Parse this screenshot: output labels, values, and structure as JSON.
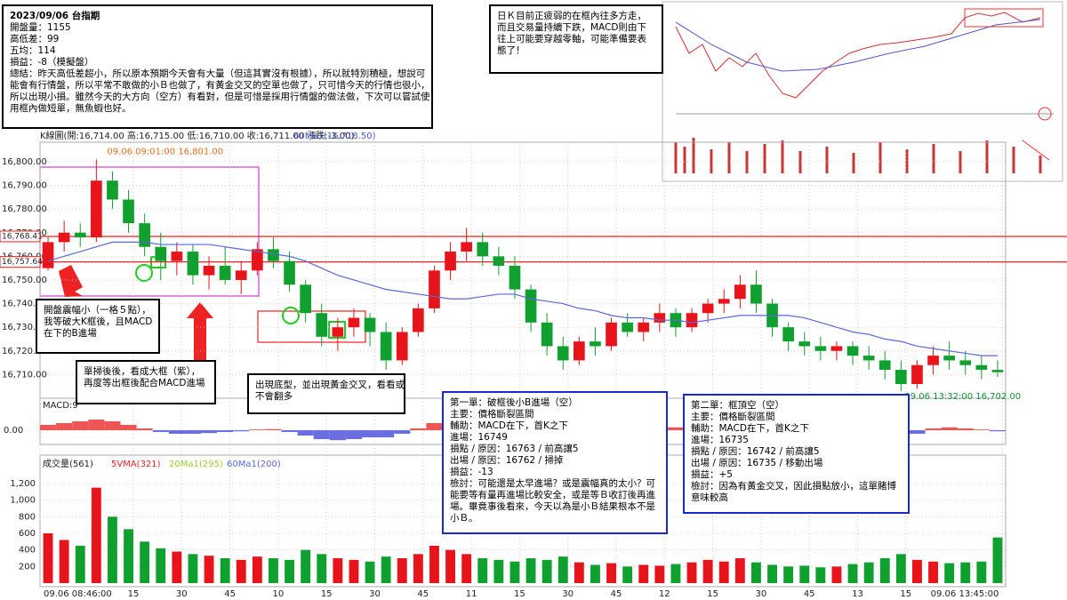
{
  "chart_data": {
    "type": "candlestick",
    "header": "K線圖(開:16,714.00 高:16,715.00 低:16,710.00 收:16,711.00 漲跌:-3.00)",
    "ma_header": "60Ma1(16,718.50)",
    "high_label": "09.06 09:01:00  16,801.00",
    "low_label": "09.06 13:32:00  16,702.00",
    "xlim": [
      0,
      300
    ],
    "xticks": [
      {
        "value": 0,
        "label": "09.06 08:46:00"
      },
      {
        "value": 29,
        "label": "15"
      },
      {
        "value": 44,
        "label": "30"
      },
      {
        "value": 59,
        "label": "45"
      },
      {
        "value": 74,
        "label": "10"
      },
      {
        "value": 89,
        "label": "15"
      },
      {
        "value": 104,
        "label": "30"
      },
      {
        "value": 119,
        "label": "45"
      },
      {
        "value": 134,
        "label": "11"
      },
      {
        "value": 149,
        "label": "15"
      },
      {
        "value": 164,
        "label": "30"
      },
      {
        "value": 179,
        "label": "45"
      },
      {
        "value": 194,
        "label": "12"
      },
      {
        "value": 209,
        "label": "15"
      },
      {
        "value": 224,
        "label": "30"
      },
      {
        "value": 239,
        "label": "45"
      },
      {
        "value": 254,
        "label": "13"
      },
      {
        "value": 269,
        "label": "15"
      },
      {
        "value": 299,
        "label": "09.06 13:45:00"
      }
    ],
    "ylim": [
      16700,
      16812
    ],
    "yticks": [
      {
        "value": 16710,
        "label": "16,710.00"
      },
      {
        "value": 16720,
        "label": "16,720.00"
      },
      {
        "value": 16730,
        "label": "16,730.00"
      },
      {
        "value": 16740,
        "label": "16,740.00"
      },
      {
        "value": 16750,
        "label": "16,750.00"
      },
      {
        "value": 16760,
        "label": "16,760.00"
      },
      {
        "value": 16770,
        "label": "16,770.00"
      },
      {
        "value": 16780,
        "label": "16,780.00"
      },
      {
        "value": 16790,
        "label": "16,790.00"
      },
      {
        "value": 16800,
        "label": "16,800.00"
      }
    ],
    "reference_lines": [
      {
        "value": 16768.41,
        "label": "16,768.41"
      },
      {
        "value": 16757.64,
        "label": "16,757.64"
      }
    ],
    "up_color": "#e8141b",
    "down_color": "#10a030",
    "ma_color": "#5b67d8",
    "open": [
      16755,
      16766,
      16770,
      16768,
      16792,
      16784,
      16774,
      16764,
      16758,
      16762,
      16752,
      16756,
      16750,
      16754,
      16763,
      16758,
      16748,
      16736,
      16726,
      16730,
      16734,
      16728,
      16716,
      16728,
      16738,
      16754,
      16762,
      16766,
      16760,
      16756,
      16746,
      16732,
      16722,
      16716,
      16724,
      16722,
      16732,
      16728,
      16732,
      16736,
      16730,
      16736,
      16740,
      16742,
      16748,
      16740,
      16730,
      16724,
      16722,
      16720,
      16722,
      16718,
      16716,
      16712,
      16706,
      16714,
      16718,
      16716,
      16714,
      16712
    ],
    "high": [
      16768,
      16775,
      16774,
      16801,
      16796,
      16788,
      16778,
      16770,
      16766,
      16765,
      16760,
      16764,
      16758,
      16766,
      16768,
      16762,
      16750,
      16740,
      16734,
      16738,
      16736,
      16732,
      16730,
      16740,
      16756,
      16766,
      16772,
      16770,
      16764,
      16760,
      16748,
      16736,
      16726,
      16726,
      16730,
      16734,
      16736,
      16734,
      16740,
      16738,
      16738,
      16742,
      16746,
      16752,
      16754,
      16742,
      16732,
      16728,
      16726,
      16724,
      16724,
      16722,
      16720,
      16716,
      16716,
      16722,
      16724,
      16720,
      16718,
      16716
    ],
    "low": [
      16754,
      16762,
      16764,
      16766,
      16780,
      16770,
      16760,
      16750,
      16752,
      16748,
      16746,
      16748,
      16744,
      16752,
      16755,
      16745,
      16732,
      16722,
      16720,
      16726,
      16722,
      16712,
      16714,
      16726,
      16736,
      16750,
      16758,
      16756,
      16752,
      16742,
      16728,
      16718,
      16712,
      16714,
      16718,
      16720,
      16726,
      16724,
      16728,
      16726,
      16728,
      16732,
      16736,
      16738,
      16736,
      16726,
      16720,
      16718,
      16716,
      16716,
      16714,
      16712,
      16708,
      16703,
      16704,
      16710,
      16712,
      16710,
      16708,
      16709
    ],
    "close": [
      16766,
      16770,
      16768,
      16792,
      16784,
      16774,
      16764,
      16758,
      16762,
      16752,
      16756,
      16750,
      16754,
      16763,
      16758,
      16748,
      16736,
      16726,
      16730,
      16734,
      16728,
      16716,
      16728,
      16738,
      16754,
      16762,
      16766,
      16760,
      16756,
      16746,
      16732,
      16722,
      16716,
      16724,
      16722,
      16732,
      16728,
      16732,
      16736,
      16730,
      16736,
      16740,
      16742,
      16748,
      16740,
      16730,
      16724,
      16722,
      16720,
      16722,
      16718,
      16716,
      16712,
      16706,
      16714,
      16718,
      16716,
      16714,
      16712,
      16711
    ],
    "ma60": [
      16758,
      16760,
      16762,
      16764,
      16766,
      16766,
      16766,
      16765,
      16765,
      16765,
      16765,
      16764,
      16763,
      16762,
      16761,
      16760,
      16758,
      16755,
      16752,
      16750,
      16748,
      16746,
      16745,
      16744,
      16743,
      16742,
      16742,
      16743,
      16744,
      16744,
      16742,
      16741,
      16740,
      16738,
      16737,
      16735,
      16734,
      16734,
      16733,
      16733,
      16732,
      16733,
      16734,
      16735,
      16735,
      16735,
      16735,
      16734,
      16732,
      16730,
      16728,
      16727,
      16725,
      16724,
      16722,
      16721,
      16720,
      16719,
      16718,
      16718
    ],
    "macd_title": "MACD:9",
    "macd_ylim": [
      -4,
      8
    ],
    "macd_yticks": [
      {
        "value": 0,
        "label": "0.00"
      }
    ],
    "macd": [
      1.5,
      2,
      2.5,
      3,
      2.5,
      1.5,
      0.5,
      -0.5,
      -1,
      -1,
      -0.8,
      -0.5,
      -0.3,
      0.2,
      0.3,
      -0.5,
      -1.5,
      -2.5,
      -2.8,
      -2.5,
      -2,
      -2,
      -1,
      0.5,
      2,
      3,
      3,
      2.5,
      1.5,
      0.5,
      -0.8,
      -1.8,
      -2.5,
      -2,
      -1.5,
      -0.5,
      0,
      0.3,
      0.5,
      0.8,
      0.8,
      1,
      1.2,
      1.5,
      1.2,
      0,
      -1,
      -1.5,
      -1.5,
      -1.2,
      -1,
      -0.8,
      -1.2,
      -1.8,
      -1,
      0.5,
      0.8,
      0.5,
      0.2,
      -0.3
    ],
    "volume_title": "成交量(561)",
    "volume_legend": [
      "5VMA(321)",
      "20Ma1(295)",
      "60Ma1(200)"
    ],
    "volume_ylim": [
      0,
      1500
    ],
    "volume_yticks": [
      200,
      400,
      600,
      800,
      {
        "value": 1000,
        "label": "1,000"
      },
      {
        "value": 1200,
        "label": "1,200"
      }
    ],
    "volume": [
      600,
      520,
      450,
      1150,
      800,
      650,
      500,
      420,
      380,
      350,
      330,
      300,
      280,
      320,
      300,
      280,
      400,
      350,
      300,
      280,
      260,
      320,
      300,
      350,
      450,
      400,
      350,
      300,
      280,
      260,
      300,
      280,
      320,
      250,
      220,
      240,
      200,
      220,
      210,
      230,
      250,
      280,
      260,
      300,
      250,
      220,
      200,
      210,
      190,
      200,
      230,
      250,
      300,
      350,
      280,
      260,
      240,
      250,
      260,
      550
    ],
    "annotations": [
      {
        "lines": [
          "2023/09/06 台指期",
          "開盤量：1155",
          "高低差：99",
          "五均：114",
          "損益：-8（模擬盤）",
          "總結：昨天高低差超小，所以原本預期今天會有大量（但這其實沒有根據），所以就特別積極，想說可",
          "能會有行情盤，所以平常不敢做的小Ｂ也做了，有黃金交叉的空單也做了，只可惜今天的行情也很小，",
          "所以出現小損。雖然今天的大方向（空方）有看對，但是可惜是採用行情盤的做法做，下次可以嘗試使",
          "用框內做短單，無魚蝦也好。"
        ]
      },
      {
        "lines": [
          "日Ｋ目前正疲弱的在框內往多方走，",
          "而且交易量持續下跌，MACD則由下",
          "往上可能要穿越零軸，可能準備要表",
          "態了！"
        ]
      },
      {
        "lines": [
          "開盤震幅小（一格５點），",
          "我等破大K框後，且MACD",
          "在下的B進場"
        ]
      },
      {
        "lines": [
          "單掃後後，看成大框（紫），",
          "再度等出框後配合MACD進場"
        ]
      },
      {
        "lines": [
          "出現底型，並出現黃金交叉，看看或",
          "不會翻多"
        ]
      },
      {
        "lines": [
          "第一單：破框後小B進場（空）",
          "主要：價格斷裂區間",
          "輔助：MACD在下，首K之下",
          "進場：16749",
          "損點 / 原因：16763 / 前高讓5",
          "出場 / 原因：16762 / 掃掉",
          "損益：-13",
          "檢討：可能還是太早進場？或是震幅真的太小？可",
          "能要等有量再進場比較安全，或是等Ｂ收訂後再進",
          "場。畢竟事後看來，今天以為是小Ｂ結果根本不是",
          "小Ｂ。"
        ]
      },
      {
        "lines": [
          "第二單：框頂空（空）",
          "主要：價格斷裂區間",
          "輔助：MACD在下，首K之下",
          "進場：16735",
          "損點 / 原因：16742 / 前高讓5",
          "出場 / 原因：16735 / 移動出場",
          "損益：+5",
          "檢討：因為有黃金交叉，因此損點放小，這單賭博",
          "意味較高"
        ]
      }
    ]
  }
}
